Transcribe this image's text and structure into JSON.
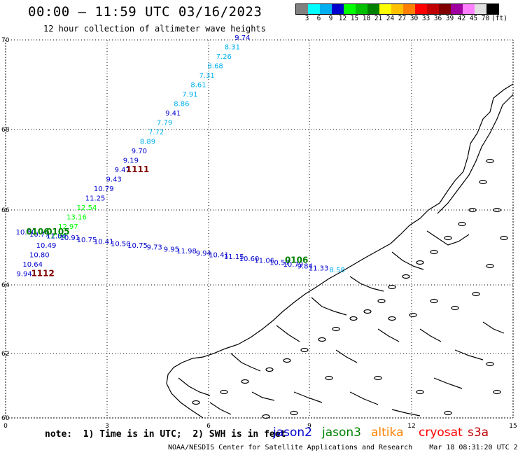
{
  "header": {
    "title": "00:00 – 11:59 UTC 03/16/2023",
    "subtitle": "12 hour collection of altimeter wave heights"
  },
  "colorbar": {
    "colors": [
      "#808080",
      "#00ffff",
      "#00b0f0",
      "#0000cc",
      "#00ff00",
      "#00c000",
      "#008000",
      "#ffff00",
      "#ffc000",
      "#ff8000",
      "#ff0000",
      "#c00000",
      "#800000",
      "#a000a0",
      "#ff80ff",
      "#e0e0e0",
      "#000000"
    ],
    "labels": [
      "3",
      "6",
      "9",
      "12",
      "15",
      "18",
      "21",
      "24",
      "27",
      "30",
      "33",
      "36",
      "39",
      "42",
      "45",
      "70",
      "(ft)"
    ]
  },
  "axes": {
    "x_ticks": [
      "0",
      "3",
      "6",
      "9",
      "12",
      "15"
    ],
    "y_ticks": [
      "70",
      "68",
      "66",
      "64",
      "62",
      "60"
    ]
  },
  "chart_data": {
    "type": "scatter",
    "xlim": [
      0,
      15
    ],
    "ylim": [
      60,
      70
    ],
    "units": "ft",
    "series": [
      {
        "satellite": "jason2",
        "color_hint": "ascending track",
        "values": [
          {
            "x": 7.0,
            "y": 70.0,
            "label": "9.74"
          },
          {
            "x": 6.7,
            "y": 69.75,
            "label": "8.31"
          },
          {
            "x": 6.45,
            "y": 69.5,
            "label": "7.26"
          },
          {
            "x": 6.2,
            "y": 69.25,
            "label": "8.68"
          },
          {
            "x": 5.95,
            "y": 69.0,
            "label": "7.31"
          },
          {
            "x": 5.7,
            "y": 68.75,
            "label": "8.61"
          },
          {
            "x": 5.45,
            "y": 68.5,
            "label": "7.91"
          },
          {
            "x": 5.2,
            "y": 68.25,
            "label": "8.86"
          },
          {
            "x": 4.95,
            "y": 68.0,
            "label": "9.41"
          },
          {
            "x": 4.7,
            "y": 67.75,
            "label": "7.79"
          },
          {
            "x": 4.45,
            "y": 67.5,
            "label": "7.72"
          },
          {
            "x": 4.2,
            "y": 67.25,
            "label": "8.89"
          },
          {
            "x": 3.95,
            "y": 67.0,
            "label": "9.70"
          },
          {
            "x": 3.7,
            "y": 66.75,
            "label": "9.19"
          },
          {
            "x": 3.45,
            "y": 66.5,
            "label": "9.47"
          },
          {
            "x": 3.2,
            "y": 66.25,
            "label": "9.43"
          },
          {
            "x": 2.9,
            "y": 66.0,
            "label": "10.79"
          },
          {
            "x": 2.65,
            "y": 65.75,
            "label": "11.25"
          },
          {
            "x": 2.4,
            "y": 65.5,
            "label": "12.54"
          },
          {
            "x": 2.1,
            "y": 65.25,
            "label": "13.16"
          },
          {
            "x": 1.85,
            "y": 65.0,
            "label": "12.97"
          },
          {
            "x": 1.5,
            "y": 64.75,
            "label": "12.30"
          },
          {
            "x": 1.2,
            "y": 64.5,
            "label": "10.49"
          },
          {
            "x": 1.0,
            "y": 64.25,
            "label": "10.80"
          },
          {
            "x": 0.8,
            "y": 64.0,
            "label": "10.64"
          },
          {
            "x": 0.55,
            "y": 63.75,
            "label": "9.94"
          }
        ]
      },
      {
        "satellite": "jason2",
        "color_hint": "eastward track",
        "values": [
          {
            "x": 0.6,
            "y": 64.85,
            "label": "10.60"
          },
          {
            "x": 1.0,
            "y": 64.8,
            "label": "10.77"
          },
          {
            "x": 1.5,
            "y": 64.75,
            "label": "11.04"
          },
          {
            "x": 1.9,
            "y": 64.7,
            "label": "10.91"
          },
          {
            "x": 2.4,
            "y": 64.65,
            "label": "10.75"
          },
          {
            "x": 2.9,
            "y": 64.6,
            "label": "10.41"
          },
          {
            "x": 3.4,
            "y": 64.55,
            "label": "10.50"
          },
          {
            "x": 3.9,
            "y": 64.5,
            "label": "10.75"
          },
          {
            "x": 4.4,
            "y": 64.45,
            "label": "9.73"
          },
          {
            "x": 4.9,
            "y": 64.4,
            "label": "9.95"
          },
          {
            "x": 5.35,
            "y": 64.35,
            "label": "11.98"
          },
          {
            "x": 5.85,
            "y": 64.3,
            "label": "9.94"
          },
          {
            "x": 6.3,
            "y": 64.25,
            "label": "10.41"
          },
          {
            "x": 6.75,
            "y": 64.2,
            "label": "11.15"
          },
          {
            "x": 7.2,
            "y": 64.15,
            "label": "10.60"
          },
          {
            "x": 7.65,
            "y": 64.1,
            "label": "11.06"
          },
          {
            "x": 8.1,
            "y": 64.05,
            "label": "10.57"
          },
          {
            "x": 8.5,
            "y": 64.0,
            "label": "10.79"
          },
          {
            "x": 8.85,
            "y": 63.95,
            "label": "9.84"
          },
          {
            "x": 9.25,
            "y": 63.9,
            "label": "11.33"
          },
          {
            "x": 9.8,
            "y": 63.85,
            "label": "8.58"
          }
        ]
      }
    ],
    "time_labels": [
      {
        "x": 3.9,
        "y": 66.5,
        "label": "1111",
        "color": "#800000"
      },
      {
        "x": 1.1,
        "y": 63.75,
        "label": "1112",
        "color": "#800000"
      },
      {
        "x": 0.95,
        "y": 64.85,
        "label": "0106",
        "color": "#008000"
      },
      {
        "x": 1.55,
        "y": 64.85,
        "label": "0105",
        "color": "#008000"
      },
      {
        "x": 8.6,
        "y": 64.1,
        "label": "0106",
        "color": "#008000"
      }
    ]
  },
  "footer": {
    "note": "note:  1) Time is in UTC;  2) SWH is in feet",
    "legend": [
      {
        "label": "jason2",
        "color": "#0000cc"
      },
      {
        "label": "jason3",
        "color": "#008000"
      },
      {
        "label": "altika",
        "color": "#ff8000"
      },
      {
        "label": "cryosat",
        "color": "#ff0000"
      },
      {
        "label": "s3a",
        "color": "#c00000"
      }
    ],
    "credit": "NOAA/NESDIS Center for Satellite Applications and Research    Mar 18 08:31:20 UTC 2023"
  }
}
